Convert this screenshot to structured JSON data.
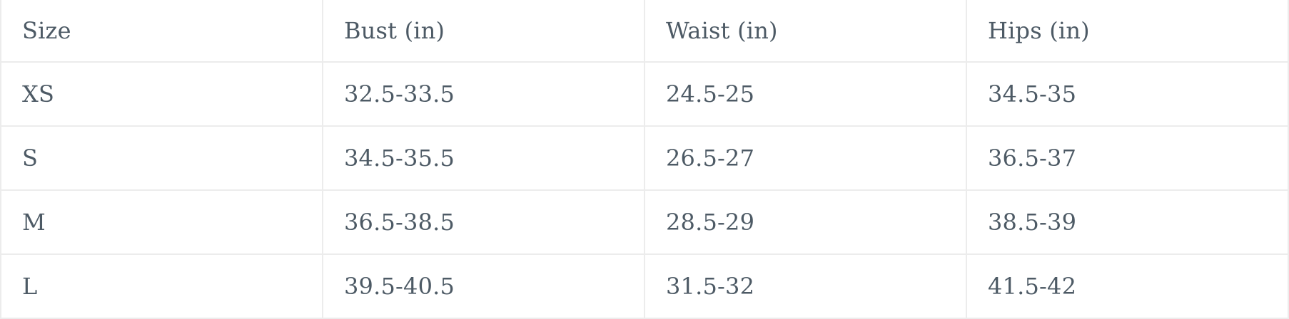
{
  "table": {
    "columns": [
      {
        "id": "size",
        "label": "Size"
      },
      {
        "id": "bust",
        "label": "Bust (in)"
      },
      {
        "id": "waist",
        "label": "Waist (in)"
      },
      {
        "id": "hips",
        "label": "Hips (in)"
      }
    ],
    "rows": [
      {
        "size": "XS",
        "bust": "32.5-33.5",
        "waist": "24.5-25",
        "hips": "34.5-35"
      },
      {
        "size": "S",
        "bust": "34.5-35.5",
        "waist": "26.5-27",
        "hips": "36.5-37"
      },
      {
        "size": "M",
        "bust": "36.5-38.5",
        "waist": "28.5-29",
        "hips": "38.5-39"
      },
      {
        "size": "L",
        "bust": "39.5-40.5",
        "waist": "31.5-32",
        "hips": "41.5-42"
      }
    ]
  },
  "chart_data": {
    "type": "table",
    "columns": [
      "Size",
      "Bust (in)",
      "Waist (in)",
      "Hips (in)"
    ],
    "rows": [
      [
        "XS",
        "32.5-33.5",
        "24.5-25",
        "34.5-35"
      ],
      [
        "S",
        "34.5-35.5",
        "26.5-27",
        "36.5-37"
      ],
      [
        "M",
        "36.5-38.5",
        "28.5-29",
        "38.5-39"
      ],
      [
        "L",
        "39.5-40.5",
        "31.5-32",
        "41.5-42"
      ]
    ]
  },
  "colors": {
    "text": "#4d5a65",
    "border": "#ececec",
    "background": "#ffffff"
  }
}
